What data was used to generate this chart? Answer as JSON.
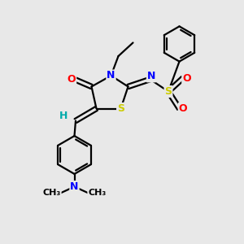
{
  "bg_color": "#e8e8e8",
  "bond_color": "#000000",
  "bond_lw": 1.6,
  "atom_colors": {
    "N": "#0000ff",
    "O": "#ff0000",
    "S": "#cccc00",
    "H": "#00aaaa",
    "C": "#000000"
  },
  "fs": 9,
  "fs_small": 8
}
